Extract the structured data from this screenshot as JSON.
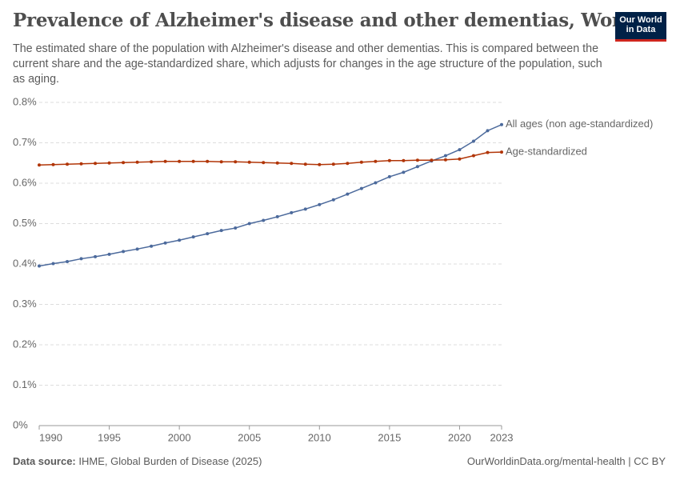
{
  "logo": [
    "Our World",
    "in Data"
  ],
  "footer": {
    "source_label": "Data source:",
    "source": "IHME, Global Burden of Disease (2025)",
    "url": "OurWorldinData.org/mental-health | CC BY"
  },
  "chart_data": {
    "type": "line",
    "title": "Prevalence of Alzheimer's disease and other dementias, World",
    "subtitle": "The estimated share of the population with Alzheimer's disease and other dementias. This is compared between the current share and the age-standardized share, which adjusts for changes in the age structure of the population, such as aging.",
    "x": [
      1990,
      1991,
      1992,
      1993,
      1994,
      1995,
      1996,
      1997,
      1998,
      1999,
      2000,
      2001,
      2002,
      2003,
      2004,
      2005,
      2006,
      2007,
      2008,
      2009,
      2010,
      2011,
      2012,
      2013,
      2014,
      2015,
      2016,
      2017,
      2018,
      2019,
      2020,
      2021,
      2022,
      2023
    ],
    "series": [
      {
        "name": "All ages (non age-standardized)",
        "color": "#4c6a9c",
        "values": [
          0.395,
          0.401,
          0.406,
          0.413,
          0.418,
          0.424,
          0.431,
          0.437,
          0.444,
          0.452,
          0.459,
          0.467,
          0.475,
          0.483,
          0.489,
          0.5,
          0.508,
          0.517,
          0.527,
          0.536,
          0.547,
          0.559,
          0.573,
          0.587,
          0.601,
          0.616,
          0.627,
          0.641,
          0.655,
          0.668,
          0.683,
          0.704,
          0.73,
          0.745
        ]
      },
      {
        "name": "Age-standardized",
        "color": "#b13507",
        "values": [
          0.645,
          0.646,
          0.647,
          0.648,
          0.649,
          0.65,
          0.651,
          0.652,
          0.653,
          0.654,
          0.654,
          0.654,
          0.654,
          0.653,
          0.653,
          0.652,
          0.651,
          0.65,
          0.649,
          0.647,
          0.646,
          0.647,
          0.649,
          0.652,
          0.654,
          0.656,
          0.656,
          0.657,
          0.657,
          0.658,
          0.66,
          0.668,
          0.676,
          0.677
        ]
      }
    ],
    "xlim": [
      1990,
      2023
    ],
    "xticks": [
      1990,
      1995,
      2000,
      2005,
      2010,
      2015,
      2020,
      2023
    ],
    "ylim": [
      0,
      0.8
    ],
    "yticks": [
      {
        "value": 0,
        "label": "0%"
      },
      {
        "value": 0.1,
        "label": "0.1%"
      },
      {
        "value": 0.2,
        "label": "0.2%"
      },
      {
        "value": 0.3,
        "label": "0.3%"
      },
      {
        "value": 0.4,
        "label": "0.4%"
      },
      {
        "value": 0.5,
        "label": "0.5%"
      },
      {
        "value": 0.6,
        "label": "0.6%"
      },
      {
        "value": 0.7,
        "label": "0.7%"
      },
      {
        "value": 0.8,
        "label": "0.8%"
      }
    ],
    "grid": true
  }
}
